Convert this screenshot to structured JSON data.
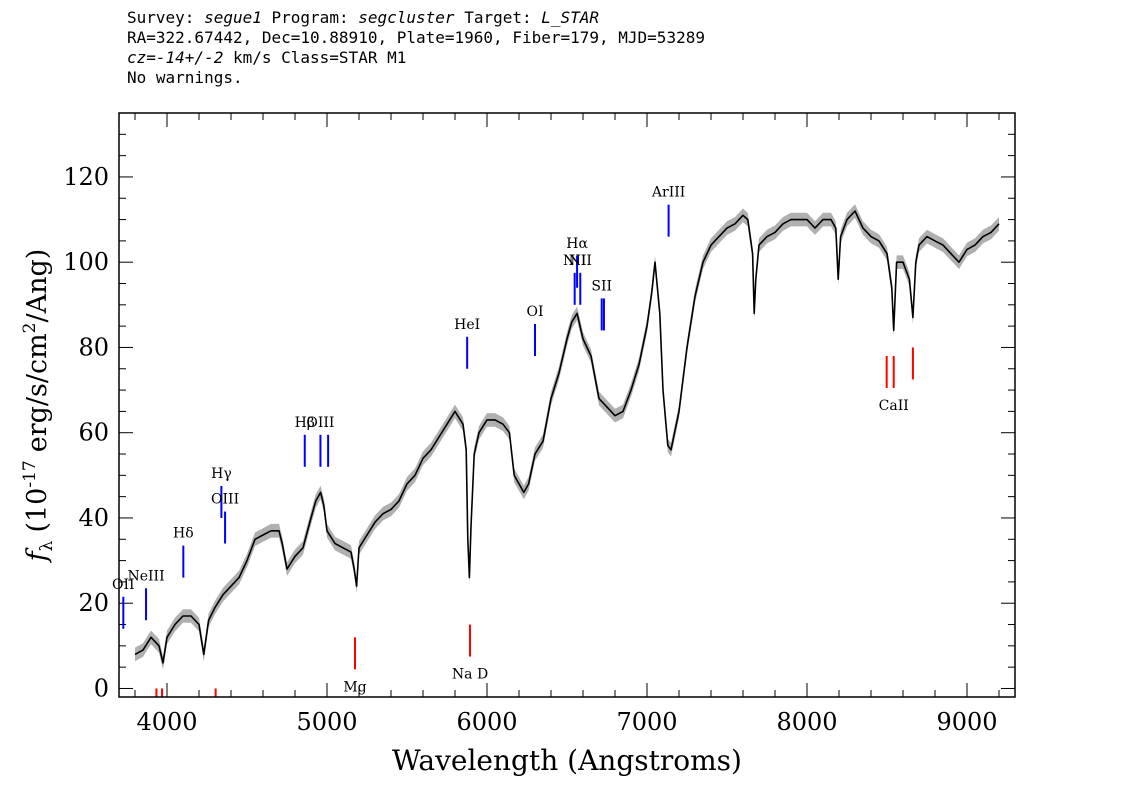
{
  "header": {
    "survey_label": "Survey:",
    "survey": "segue1",
    "program_label": "Program:",
    "program": "segcluster",
    "target_label": "Target:",
    "target": "L_STAR",
    "line2": "RA=322.67442, Dec=10.88910, Plate=1960, Fiber=179, MJD=53289",
    "cz_value": "cz=-14+/-2",
    "cz_rest": " km/s Class=STAR M1",
    "line4": "No warnings."
  },
  "chart_data": {
    "type": "line",
    "xlabel": "Wavelength (Angstroms)",
    "ylabel_f": "f",
    "ylabel_sub": "λ",
    "ylabel_main": "(10",
    "ylabel_exp": "-17",
    "ylabel_units": "erg/s/cm",
    "ylabel_sq": "2",
    "ylabel_tail": "/Ang)",
    "xlim": [
      3700,
      9300
    ],
    "ylim": [
      -2,
      135
    ],
    "xticks": [
      4000,
      5000,
      6000,
      7000,
      8000,
      9000
    ],
    "yticks": [
      0,
      20,
      40,
      60,
      80,
      100,
      120
    ],
    "x_minor_step": 200,
    "y_minor_step": 5,
    "series": [
      {
        "color": "#000000",
        "x": [
          3800,
          3850,
          3900,
          3950,
          3975,
          4000,
          4050,
          4100,
          4150,
          4200,
          4230,
          4260,
          4300,
          4350,
          4400,
          4450,
          4500,
          4550,
          4600,
          4650,
          4700,
          4720,
          4750,
          4800,
          4850,
          4900,
          4930,
          4960,
          4980,
          5000,
          5050,
          5100,
          5150,
          5170,
          5185,
          5200,
          5250,
          5300,
          5350,
          5400,
          5450,
          5500,
          5550,
          5600,
          5650,
          5700,
          5750,
          5800,
          5850,
          5870,
          5880,
          5890,
          5900,
          5920,
          5950,
          6000,
          6050,
          6100,
          6140,
          6170,
          6200,
          6230,
          6260,
          6300,
          6350,
          6400,
          6450,
          6500,
          6530,
          6563,
          6600,
          6650,
          6700,
          6750,
          6800,
          6850,
          6900,
          6950,
          7000,
          7030,
          7050,
          7080,
          7100,
          7130,
          7150,
          7200,
          7250,
          7300,
          7350,
          7400,
          7450,
          7500,
          7550,
          7600,
          7630,
          7660,
          7670,
          7680,
          7700,
          7750,
          7800,
          7850,
          7900,
          7950,
          8000,
          8050,
          8100,
          8150,
          8180,
          8195,
          8210,
          8250,
          8300,
          8350,
          8400,
          8450,
          8500,
          8530,
          8542,
          8560,
          8600,
          8640,
          8662,
          8680,
          8700,
          8750,
          8800,
          8850,
          8900,
          8950,
          9000,
          9050,
          9100,
          9150,
          9200
        ],
        "y": [
          8,
          9,
          12,
          10,
          6,
          12,
          15,
          17,
          17,
          15,
          8,
          16,
          19,
          22,
          24,
          26,
          30,
          35,
          36,
          37,
          37,
          34,
          28,
          31,
          33,
          40,
          44,
          46,
          43,
          37,
          34,
          33,
          32,
          28,
          24,
          33,
          36,
          39,
          41,
          42,
          44,
          48,
          50,
          54,
          56,
          59,
          62,
          65,
          62,
          56,
          35,
          26,
          38,
          55,
          60,
          63,
          63,
          62,
          60,
          50,
          48,
          46,
          48,
          55,
          58,
          68,
          74,
          82,
          86,
          88,
          82,
          78,
          68,
          66,
          64,
          65,
          70,
          76,
          85,
          93,
          100,
          88,
          70,
          57,
          56,
          65,
          80,
          92,
          100,
          104,
          106,
          108,
          109,
          111,
          110,
          102,
          88,
          96,
          104,
          106,
          107,
          109,
          110,
          110,
          110,
          108,
          110,
          110,
          108,
          96,
          106,
          110,
          112,
          108,
          106,
          105,
          102,
          94,
          84,
          100,
          100,
          96,
          87,
          100,
          104,
          106,
          105,
          104,
          102,
          100,
          103,
          104,
          106,
          107,
          109
        ]
      }
    ],
    "blue_lines": [
      {
        "label": "OII",
        "x": 3727,
        "y": 14
      },
      {
        "label": "NeIII",
        "x": 3869,
        "y": 16
      },
      {
        "label": "Hδ",
        "x": 4102,
        "y": 26
      },
      {
        "label": "Hγ",
        "x": 4340,
        "y": 40
      },
      {
        "label": "OIII",
        "x": 4363,
        "y": 34
      },
      {
        "label": "Hβ",
        "x": 4861,
        "y": 52
      },
      {
        "label": "OIII",
        "x": 4959,
        "y": 52
      },
      {
        "label": "",
        "x": 5007,
        "y": 52
      },
      {
        "label": "HeI",
        "x": 5876,
        "y": 75
      },
      {
        "label": "OI",
        "x": 6300,
        "y": 78
      },
      {
        "label": "NII",
        "x": 6548,
        "y": 90
      },
      {
        "label": "Hα",
        "x": 6563,
        "y": 94
      },
      {
        "label": "NII",
        "x": 6583,
        "y": 90
      },
      {
        "label": "SII",
        "x": 6717,
        "y": 84
      },
      {
        "label": "",
        "x": 6731,
        "y": 84
      },
      {
        "label": "ArIII",
        "x": 7135,
        "y": 106
      }
    ],
    "red_lines": [
      {
        "label": "",
        "x": 3934,
        "y": 0
      },
      {
        "label": "",
        "x": 3969,
        "y": 0
      },
      {
        "label": "",
        "x": 4304,
        "y": 0
      },
      {
        "label": "Mg",
        "x": 5175,
        "y": 12
      },
      {
        "label": "Na D",
        "x": 5894,
        "y": 15
      },
      {
        "label": "",
        "x": 8498,
        "y": 78
      },
      {
        "label": "CaII",
        "x": 8542,
        "y": 78
      },
      {
        "label": "",
        "x": 8662,
        "y": 80
      }
    ],
    "colors": {
      "emission": "#0000ff",
      "absorption": "#ff0000",
      "error_band": "#b0b0b0"
    }
  }
}
